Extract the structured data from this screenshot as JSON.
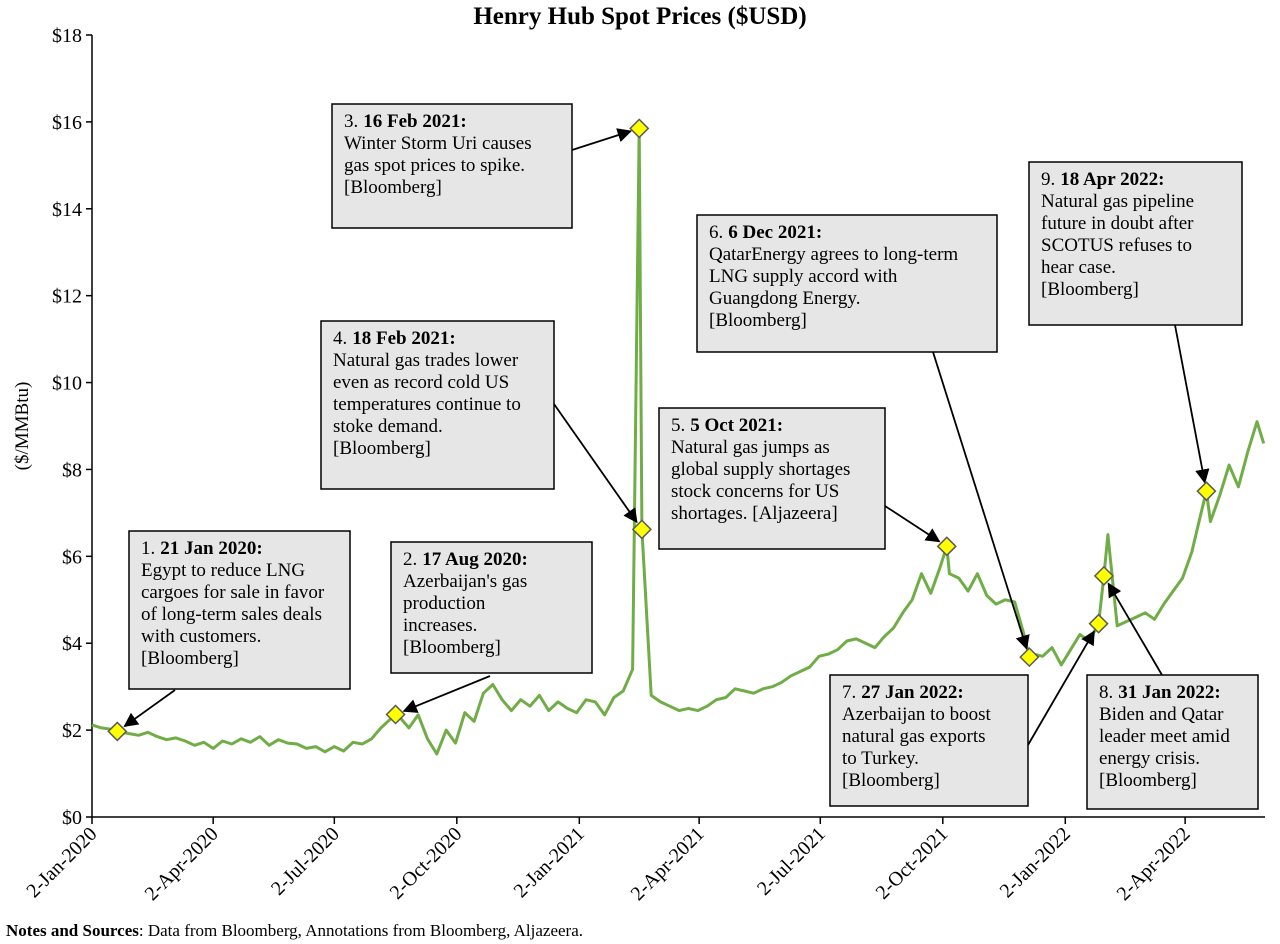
{
  "chart_data": {
    "type": "line",
    "title": "Henry Hub Spot Prices ($USD)",
    "y_label": "($/MMBtu)",
    "color": "#70ad47",
    "marker_color": "#ffff00",
    "grid": false,
    "xlim": [
      "2020-01-02",
      "2022-06-01"
    ],
    "xticks": [
      {
        "value": "2020-01-02",
        "label": "2-Jan-2020"
      },
      {
        "value": "2020-04-02",
        "label": "2-Apr-2020"
      },
      {
        "value": "2020-07-02",
        "label": "2-Jul-2020"
      },
      {
        "value": "2020-10-02",
        "label": "2-Oct-2020"
      },
      {
        "value": "2021-01-02",
        "label": "2-Jan-2021"
      },
      {
        "value": "2021-04-02",
        "label": "2-Apr-2021"
      },
      {
        "value": "2021-07-02",
        "label": "2-Jul-2021"
      },
      {
        "value": "2021-10-02",
        "label": "2-Oct-2021"
      },
      {
        "value": "2022-01-02",
        "label": "2-Jan-2022"
      },
      {
        "value": "2022-04-02",
        "label": "2-Apr-2022"
      }
    ],
    "ylim": [
      0,
      18
    ],
    "yticks": [
      {
        "value": 0,
        "label": "$0"
      },
      {
        "value": 2,
        "label": "$2"
      },
      {
        "value": 4,
        "label": "$4"
      },
      {
        "value": 6,
        "label": "$6"
      },
      {
        "value": 8,
        "label": "$8"
      },
      {
        "value": 10,
        "label": "$10"
      },
      {
        "value": 12,
        "label": "$12"
      },
      {
        "value": 14,
        "label": "$14"
      },
      {
        "value": 16,
        "label": "$16"
      },
      {
        "value": 18,
        "label": "$18"
      }
    ],
    "x": [
      "2020-01-02",
      "2020-01-09",
      "2020-01-16",
      "2020-01-21",
      "2020-01-23",
      "2020-01-30",
      "2020-02-06",
      "2020-02-13",
      "2020-02-20",
      "2020-02-27",
      "2020-03-05",
      "2020-03-12",
      "2020-03-19",
      "2020-03-26",
      "2020-04-02",
      "2020-04-09",
      "2020-04-16",
      "2020-04-23",
      "2020-04-30",
      "2020-05-07",
      "2020-05-14",
      "2020-05-21",
      "2020-05-28",
      "2020-06-04",
      "2020-06-11",
      "2020-06-18",
      "2020-06-25",
      "2020-07-02",
      "2020-07-09",
      "2020-07-16",
      "2020-07-23",
      "2020-07-30",
      "2020-08-06",
      "2020-08-13",
      "2020-08-17",
      "2020-08-20",
      "2020-08-27",
      "2020-09-03",
      "2020-09-10",
      "2020-09-17",
      "2020-09-24",
      "2020-10-01",
      "2020-10-08",
      "2020-10-15",
      "2020-10-22",
      "2020-10-29",
      "2020-11-05",
      "2020-11-12",
      "2020-11-19",
      "2020-11-26",
      "2020-12-03",
      "2020-12-10",
      "2020-12-17",
      "2020-12-24",
      "2020-12-31",
      "2021-01-07",
      "2021-01-14",
      "2021-01-21",
      "2021-01-28",
      "2021-02-04",
      "2021-02-11",
      "2021-02-16",
      "2021-02-18",
      "2021-02-25",
      "2021-03-04",
      "2021-03-11",
      "2021-03-18",
      "2021-03-25",
      "2021-04-01",
      "2021-04-08",
      "2021-04-15",
      "2021-04-22",
      "2021-04-29",
      "2021-05-06",
      "2021-05-13",
      "2021-05-20",
      "2021-05-27",
      "2021-06-03",
      "2021-06-10",
      "2021-06-17",
      "2021-06-24",
      "2021-07-01",
      "2021-07-08",
      "2021-07-15",
      "2021-07-22",
      "2021-07-29",
      "2021-08-05",
      "2021-08-12",
      "2021-08-19",
      "2021-08-26",
      "2021-09-02",
      "2021-09-09",
      "2021-09-16",
      "2021-09-23",
      "2021-09-30",
      "2021-10-05",
      "2021-10-07",
      "2021-10-14",
      "2021-10-21",
      "2021-10-28",
      "2021-11-04",
      "2021-11-11",
      "2021-11-18",
      "2021-11-25",
      "2021-12-02",
      "2021-12-06",
      "2021-12-09",
      "2021-12-16",
      "2021-12-23",
      "2021-12-30",
      "2022-01-06",
      "2022-01-13",
      "2022-01-20",
      "2022-01-27",
      "2022-01-31",
      "2022-02-03",
      "2022-02-10",
      "2022-02-17",
      "2022-02-24",
      "2022-03-03",
      "2022-03-10",
      "2022-03-17",
      "2022-03-24",
      "2022-03-31",
      "2022-04-07",
      "2022-04-14",
      "2022-04-18",
      "2022-04-21",
      "2022-04-28",
      "2022-05-05",
      "2022-05-12",
      "2022-05-19",
      "2022-05-26",
      "2022-05-31"
    ],
    "values": [
      2.12,
      2.05,
      2.02,
      1.97,
      1.95,
      1.92,
      1.88,
      1.95,
      1.85,
      1.78,
      1.82,
      1.75,
      1.65,
      1.72,
      1.58,
      1.75,
      1.68,
      1.8,
      1.72,
      1.85,
      1.65,
      1.78,
      1.7,
      1.68,
      1.58,
      1.62,
      1.5,
      1.62,
      1.52,
      1.72,
      1.68,
      1.8,
      2.05,
      2.25,
      2.36,
      2.3,
      2.05,
      2.35,
      1.8,
      1.45,
      2.0,
      1.7,
      2.4,
      2.2,
      2.85,
      3.05,
      2.7,
      2.45,
      2.7,
      2.55,
      2.8,
      2.45,
      2.65,
      2.5,
      2.4,
      2.7,
      2.65,
      2.35,
      2.75,
      2.9,
      3.4,
      15.85,
      6.62,
      2.8,
      2.65,
      2.55,
      2.45,
      2.5,
      2.45,
      2.55,
      2.7,
      2.75,
      2.95,
      2.9,
      2.85,
      2.95,
      3.0,
      3.1,
      3.25,
      3.35,
      3.45,
      3.7,
      3.75,
      3.85,
      4.05,
      4.1,
      4.0,
      3.9,
      4.15,
      4.35,
      4.7,
      5.0,
      5.6,
      5.15,
      5.75,
      6.23,
      5.6,
      5.5,
      5.2,
      5.6,
      5.1,
      4.9,
      5.0,
      4.95,
      4.2,
      3.68,
      3.75,
      3.7,
      3.9,
      3.5,
      3.85,
      4.2,
      4.05,
      4.45,
      5.55,
      6.5,
      4.4,
      4.5,
      4.6,
      4.7,
      4.55,
      4.9,
      5.2,
      5.5,
      6.1,
      7.0,
      7.5,
      6.8,
      7.4,
      8.1,
      7.6,
      8.4,
      9.1,
      8.6
    ],
    "annotations": [
      {
        "number": "1.",
        "date": "21 Jan 2020:",
        "lines": [
          "Egypt to reduce LNG",
          "cargoes for sale in favor",
          "of long-term sales deals",
          "with customers.",
          "[Bloomberg]"
        ]
      },
      {
        "number": "2.",
        "date": "17 Aug 2020:",
        "lines": [
          "Azerbaijan's gas",
          "production",
          "increases.",
          "[Bloomberg]"
        ]
      },
      {
        "number": "3.",
        "date": "16 Feb 2021:",
        "lines": [
          "Winter Storm Uri causes",
          "gas spot prices to spike.",
          "[Bloomberg]"
        ]
      },
      {
        "number": "4.",
        "date": "18 Feb 2021:",
        "lines": [
          "Natural gas trades lower",
          "even as record cold US",
          "temperatures continue to",
          "stoke demand.",
          "[Bloomberg]"
        ]
      },
      {
        "number": "5.",
        "date": "5 Oct 2021:",
        "lines": [
          "Natural gas jumps as",
          "global supply shortages",
          "stock concerns for US",
          "shortages. [Aljazeera]"
        ]
      },
      {
        "number": "6.",
        "date": "6 Dec 2021:",
        "lines": [
          "QatarEnergy agrees to long-term",
          "LNG supply accord with",
          "Guangdong Energy.",
          "[Bloomberg]"
        ]
      },
      {
        "number": "7.",
        "date": "27 Jan 2022:",
        "lines": [
          "Azerbaijan to boost",
          "natural gas exports",
          "to Turkey.",
          "[Bloomberg]"
        ]
      },
      {
        "number": "8.",
        "date": "31 Jan 2022:",
        "lines": [
          "Biden and Qatar",
          "leader meet amid",
          "energy crisis.",
          "[Bloomberg]"
        ]
      },
      {
        "number": "9.",
        "date": "18 Apr 2022:",
        "lines": [
          "Natural gas pipeline",
          "future in doubt after",
          "SCOTUS refuses to",
          "hear case.",
          "[Bloomberg]"
        ]
      }
    ],
    "notes_label": "Notes and Sources",
    "notes": ": Data from Bloomberg, Annotations from Bloomberg, Aljazeera."
  }
}
